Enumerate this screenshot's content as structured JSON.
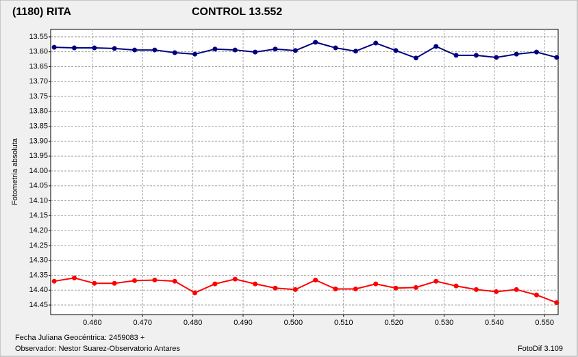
{
  "chart_data": {
    "type": "line",
    "y_label": "Fotometría absoluta",
    "footer_left": [
      "Fecha Juliana Geocéntrica: 2459083 +",
      "Observador: Nestor Suarez-Observatorio Antares"
    ],
    "footer_right": "FotoDif 3.109",
    "x": [
      0.4524,
      0.4564,
      0.4604,
      0.4644,
      0.4684,
      0.4724,
      0.4764,
      0.4804,
      0.4844,
      0.4884,
      0.4924,
      0.4964,
      0.5004,
      0.5044,
      0.5084,
      0.5124,
      0.5164,
      0.5204,
      0.5244,
      0.5284,
      0.5324,
      0.5364,
      0.5404,
      0.5444,
      0.5484,
      0.5524
    ],
    "series": [
      {
        "name": "(1180) RITA",
        "color": "#ff0000",
        "values": [
          14.37,
          14.359,
          14.377,
          14.377,
          14.368,
          14.366,
          14.37,
          14.409,
          14.379,
          14.363,
          14.379,
          14.393,
          14.398,
          14.366,
          14.396,
          14.396,
          14.379,
          14.393,
          14.391,
          14.37,
          14.386,
          14.398,
          14.405,
          14.398,
          14.416,
          14.442
        ]
      },
      {
        "name": "CONTROL 13.552",
        "color": "#000080",
        "values": [
          13.585,
          13.587,
          13.587,
          13.589,
          13.594,
          13.594,
          13.603,
          13.608,
          13.591,
          13.594,
          13.601,
          13.591,
          13.596,
          13.568,
          13.587,
          13.598,
          13.571,
          13.596,
          13.621,
          13.582,
          13.612,
          13.612,
          13.619,
          13.608,
          13.601,
          13.619
        ]
      }
    ],
    "xlim": [
      0.4517,
      0.5527
    ],
    "ylim": [
      13.525,
      14.482
    ],
    "y_inverted": true,
    "grid": true,
    "xticks": [
      {
        "value": 0.46,
        "label": "0.460"
      },
      {
        "value": 0.47,
        "label": "0.470"
      },
      {
        "value": 0.48,
        "label": "0.480"
      },
      {
        "value": 0.49,
        "label": "0.490"
      },
      {
        "value": 0.5,
        "label": "0.500"
      },
      {
        "value": 0.51,
        "label": "0.510"
      },
      {
        "value": 0.52,
        "label": "0.520"
      },
      {
        "value": 0.53,
        "label": "0.530"
      },
      {
        "value": 0.54,
        "label": "0.540"
      },
      {
        "value": 0.55,
        "label": "0.550"
      }
    ],
    "yticks": [
      {
        "value": 13.55,
        "label": "13.55"
      },
      {
        "value": 13.6,
        "label": "13.60"
      },
      {
        "value": 13.65,
        "label": "13.65"
      },
      {
        "value": 13.7,
        "label": "13.70"
      },
      {
        "value": 13.75,
        "label": "13.75"
      },
      {
        "value": 13.8,
        "label": "13.80"
      },
      {
        "value": 13.85,
        "label": "13.85"
      },
      {
        "value": 13.9,
        "label": "13.90"
      },
      {
        "value": 13.95,
        "label": "13.95"
      },
      {
        "value": 14.0,
        "label": "14.00"
      },
      {
        "value": 14.05,
        "label": "14.05"
      },
      {
        "value": 14.1,
        "label": "14.10"
      },
      {
        "value": 14.15,
        "label": "14.15"
      },
      {
        "value": 14.2,
        "label": "14.20"
      },
      {
        "value": 14.25,
        "label": "14.25"
      },
      {
        "value": 14.3,
        "label": "14.30"
      },
      {
        "value": 14.35,
        "label": "14.35"
      },
      {
        "value": 14.4,
        "label": "14.40"
      },
      {
        "value": 14.45,
        "label": "14.45"
      }
    ]
  }
}
